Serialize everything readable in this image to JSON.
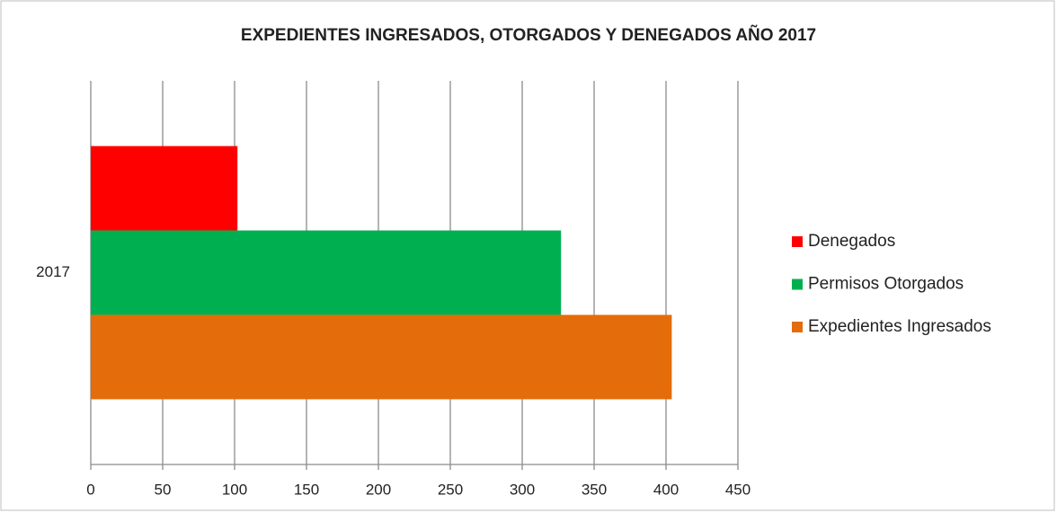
{
  "chart_data": {
    "type": "bar",
    "orientation": "horizontal",
    "title": "EXPEDIENTES INGRESADOS, OTORGADOS Y DENEGADOS AÑO 2017",
    "categories": [
      "2017"
    ],
    "series": [
      {
        "name": "Denegados",
        "color": "#ff0000",
        "values": [
          102
        ]
      },
      {
        "name": "Permisos Otorgados",
        "color": "#00b050",
        "values": [
          327
        ]
      },
      {
        "name": "Expedientes Ingresados",
        "color": "#e46c0a",
        "values": [
          404
        ]
      }
    ],
    "xlim": [
      0,
      450
    ],
    "xticks": [
      0,
      50,
      100,
      150,
      200,
      250,
      300,
      350,
      400,
      450
    ],
    "grid": true,
    "legend": "right"
  }
}
